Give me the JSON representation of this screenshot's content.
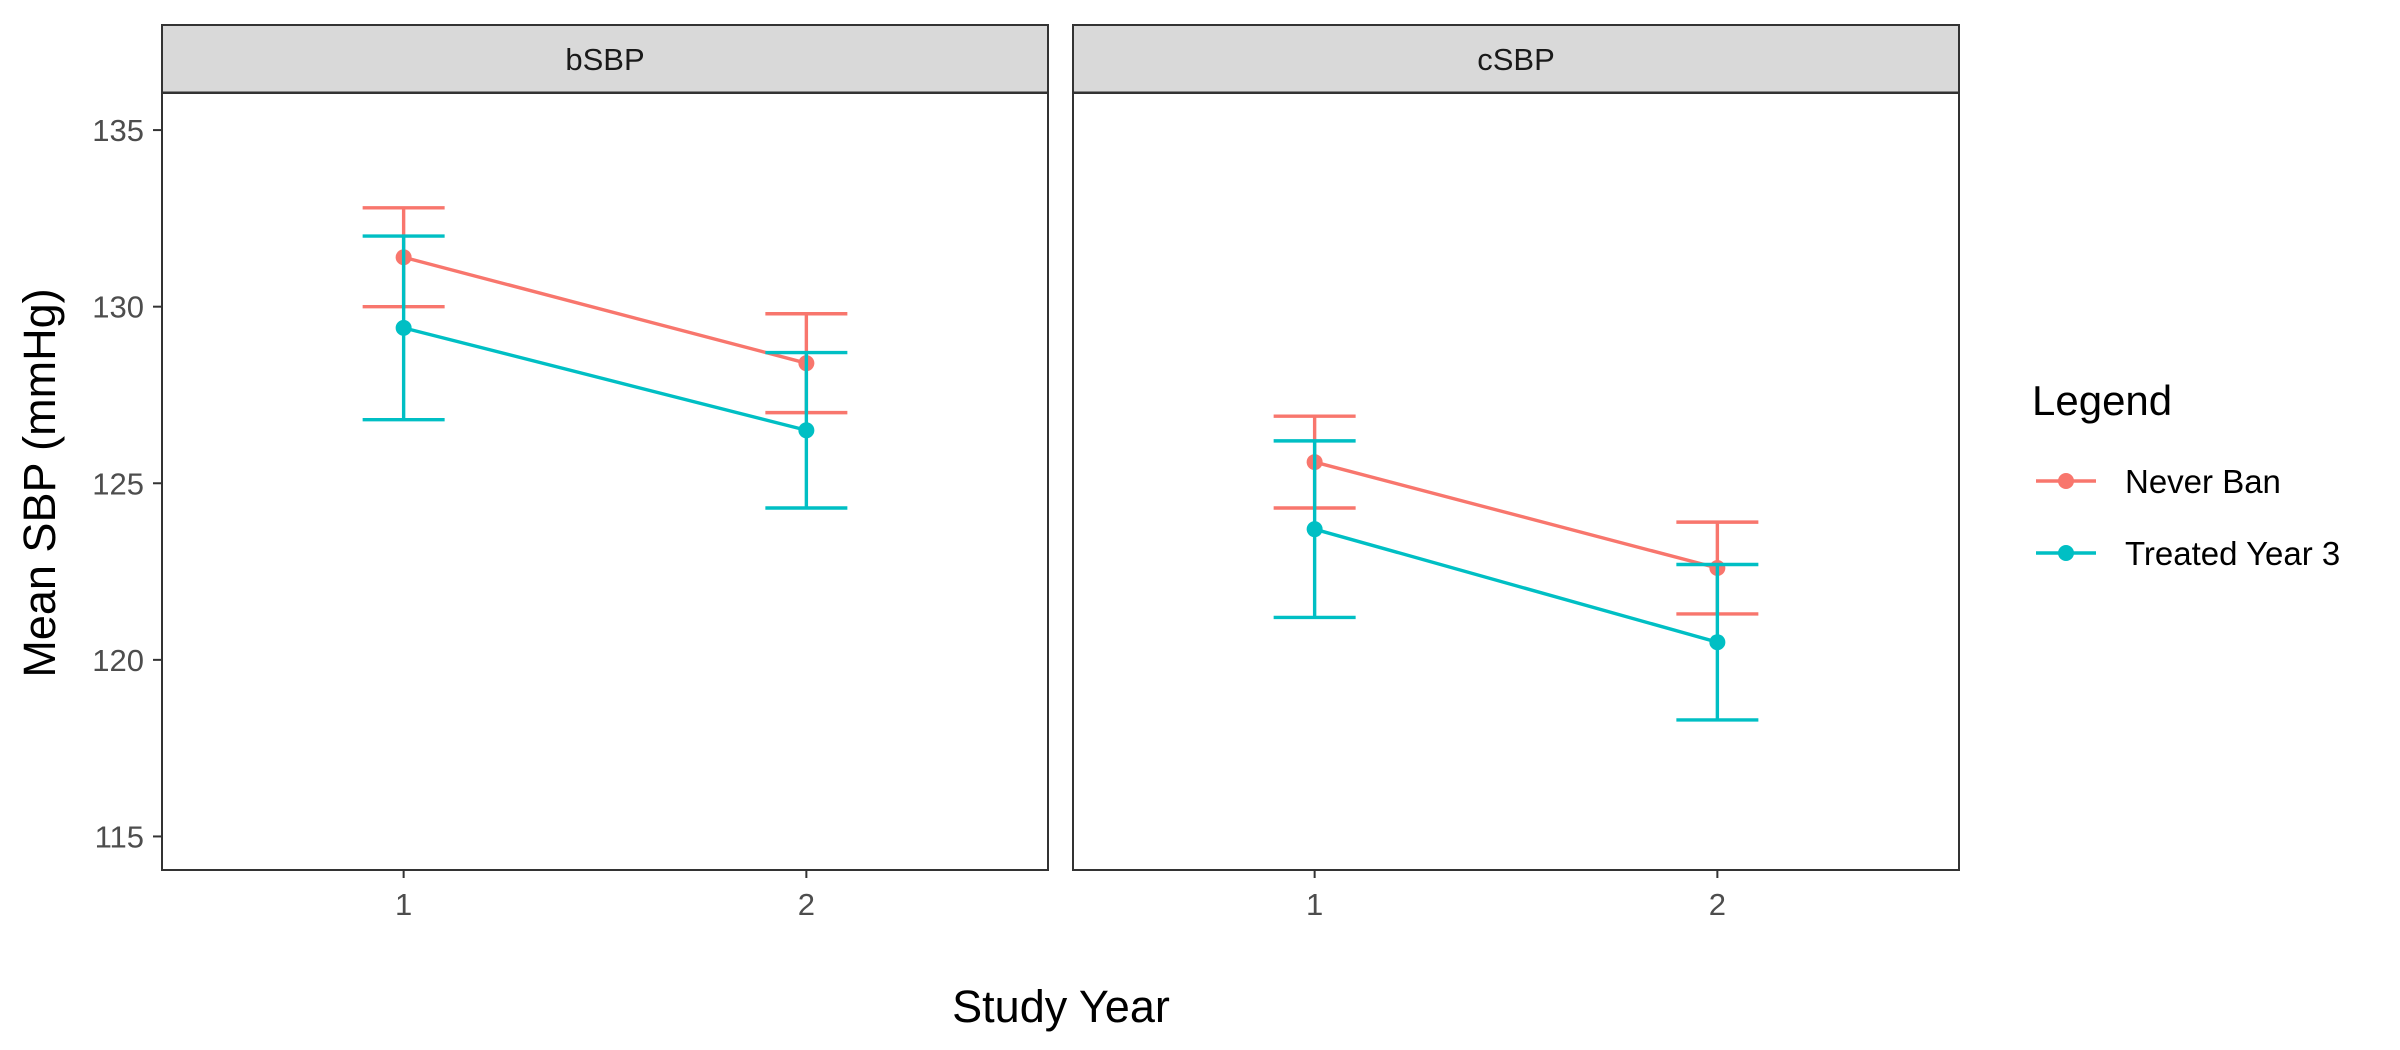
{
  "chart_data": {
    "type": "line",
    "panels": [
      {
        "label": "bSBP",
        "series": [
          {
            "name": "Never Ban",
            "x": [
              1,
              2
            ],
            "y": [
              131.4,
              128.4
            ],
            "ymin": [
              130.0,
              127.0
            ],
            "ymax": [
              132.8,
              129.8
            ]
          },
          {
            "name": "Treated Year 3",
            "x": [
              1,
              2
            ],
            "y": [
              129.4,
              126.5
            ],
            "ymin": [
              126.8,
              124.3
            ],
            "ymax": [
              132.0,
              128.7
            ]
          }
        ]
      },
      {
        "label": "cSBP",
        "series": [
          {
            "name": "Never Ban",
            "x": [
              1,
              2
            ],
            "y": [
              125.6,
              122.6
            ],
            "ymin": [
              124.3,
              121.3
            ],
            "ymax": [
              126.9,
              123.9
            ]
          },
          {
            "name": "Treated Year 3",
            "x": [
              1,
              2
            ],
            "y": [
              123.7,
              120.5
            ],
            "ymin": [
              121.2,
              118.3
            ],
            "ymax": [
              126.2,
              122.7
            ]
          }
        ]
      }
    ],
    "xlabel": "Study Year",
    "ylabel": "Mean SBP (mmHg)",
    "x_ticks": [
      "1",
      "2"
    ],
    "y_ticks": [
      115,
      120,
      125,
      130,
      135
    ],
    "xlim": [
      0.4,
      2.6
    ],
    "ylim": [
      114.05,
      136.05
    ],
    "legend": {
      "title": "Legend",
      "position": "right",
      "entries": [
        "Never Ban",
        "Treated Year 3"
      ]
    },
    "colors": {
      "Never Ban": "#F8766D",
      "Treated Year 3": "#00BFC4"
    },
    "grid": false
  }
}
